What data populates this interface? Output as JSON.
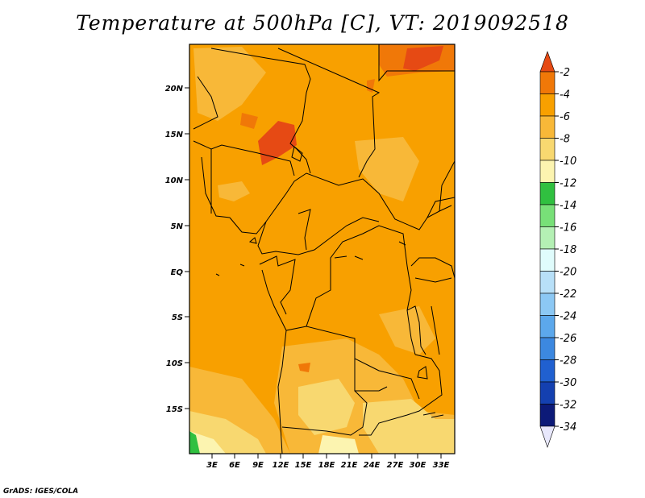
{
  "title": "Temperature at 500hPa [C], VT: 2019092518",
  "credit": "GrADS: IGES/COLA",
  "map": {
    "lat_labels": [
      "20N",
      "15N",
      "10N",
      "5N",
      "EQ",
      "5S",
      "10S",
      "15S"
    ],
    "lon_labels": [
      "3E",
      "6E",
      "9E",
      "12E",
      "15E",
      "18E",
      "21E",
      "24E",
      "27E",
      "30E",
      "33E"
    ]
  },
  "colorbar": {
    "labels": [
      "-2",
      "-4",
      "-6",
      "-8",
      "-10",
      "-12",
      "-14",
      "-16",
      "-18",
      "-20",
      "-22",
      "-24",
      "-26",
      "-28",
      "-30",
      "-32",
      "-34"
    ],
    "colors": [
      "#e64a14",
      "#f07808",
      "#f8a000",
      "#f8b838",
      "#f8d870",
      "#fcf4b0",
      "#30c040",
      "#78e078",
      "#b4f0b4",
      "#e0fcfc",
      "#b8e0f8",
      "#8cc8f4",
      "#5ca8ec",
      "#3c88e0",
      "#2060d0",
      "#1440b0",
      "#0c1a78",
      "#e8e8fc"
    ]
  }
}
